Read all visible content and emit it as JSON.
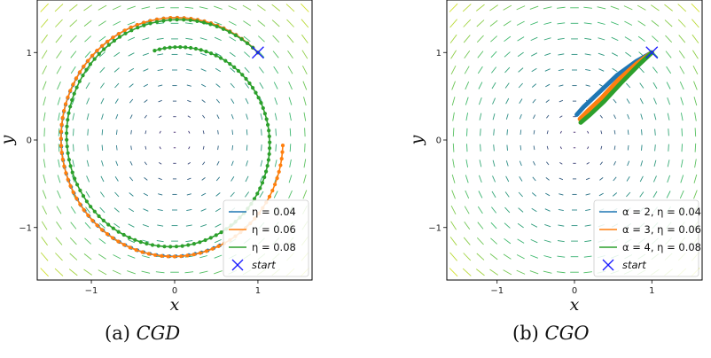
{
  "figure": {
    "captions": [
      {
        "label": "(a)",
        "name": "CGD"
      },
      {
        "label": "(b)",
        "name": "CGO"
      }
    ]
  },
  "chart_data": [
    {
      "type": "line",
      "xlabel": "x",
      "ylabel": "y",
      "xlim": [
        -1.65,
        1.65
      ],
      "ylim": [
        -1.6,
        1.6
      ],
      "xticks": [
        -1,
        0,
        1
      ],
      "yticks": [
        -1,
        0,
        1
      ],
      "xtick_labels": [
        "−1",
        "0",
        "1"
      ],
      "ytick_labels": [
        "−1",
        "0",
        "1"
      ],
      "background": "vector field (quiver) of a rotational field",
      "legend_position": "lower-right",
      "start": {
        "x": 1,
        "y": 1,
        "label": "start",
        "color": "#1a1aff"
      },
      "series": [
        {
          "name": "η = 0.04",
          "color": "#1f77b4",
          "kind": "spiral",
          "start_radius": 1.414,
          "end_radius": 1.32,
          "turn_radians": 4.35
        },
        {
          "name": "η = 0.06",
          "color": "#ff7f0e",
          "kind": "spiral",
          "start_radius": 1.414,
          "end_radius": 1.3,
          "turn_radians": 5.45
        },
        {
          "name": "η = 0.08",
          "color": "#2ca02c",
          "kind": "spiral",
          "start_radius": 1.414,
          "end_radius": 1.05,
          "turn_radians": 7.3
        }
      ]
    },
    {
      "type": "line",
      "xlabel": "x",
      "ylabel": "y",
      "xlim": [
        -1.65,
        1.65
      ],
      "ylim": [
        -1.6,
        1.6
      ],
      "xticks": [
        -1,
        0,
        1
      ],
      "yticks": [
        -1,
        0,
        1
      ],
      "xtick_labels": [
        "−1",
        "0",
        "1"
      ],
      "ytick_labels": [
        "−1",
        "0",
        "1"
      ],
      "background": "vector field (quiver) of a rotational field",
      "legend_position": "lower-right",
      "start": {
        "x": 1,
        "y": 1,
        "label": "start",
        "color": "#1a1aff"
      },
      "series": [
        {
          "name": "α = 2, η = 0.04",
          "color": "#1f77b4",
          "kind": "path",
          "points": [
            [
              1,
              1
            ],
            [
              0.8,
              0.9
            ],
            [
              0.55,
              0.74
            ],
            [
              0.3,
              0.53
            ],
            [
              0.12,
              0.38
            ],
            [
              0.03,
              0.29
            ]
          ]
        },
        {
          "name": "α = 3, η = 0.06",
          "color": "#ff7f0e",
          "kind": "path",
          "points": [
            [
              1,
              1
            ],
            [
              0.8,
              0.87
            ],
            [
              0.57,
              0.69
            ],
            [
              0.35,
              0.48
            ],
            [
              0.17,
              0.33
            ],
            [
              0.07,
              0.24
            ]
          ]
        },
        {
          "name": "α = 4, η = 0.08",
          "color": "#2ca02c",
          "kind": "path",
          "points": [
            [
              1,
              1
            ],
            [
              0.82,
              0.85
            ],
            [
              0.6,
              0.65
            ],
            [
              0.38,
              0.44
            ],
            [
              0.2,
              0.29
            ],
            [
              0.08,
              0.2
            ]
          ]
        }
      ]
    }
  ]
}
